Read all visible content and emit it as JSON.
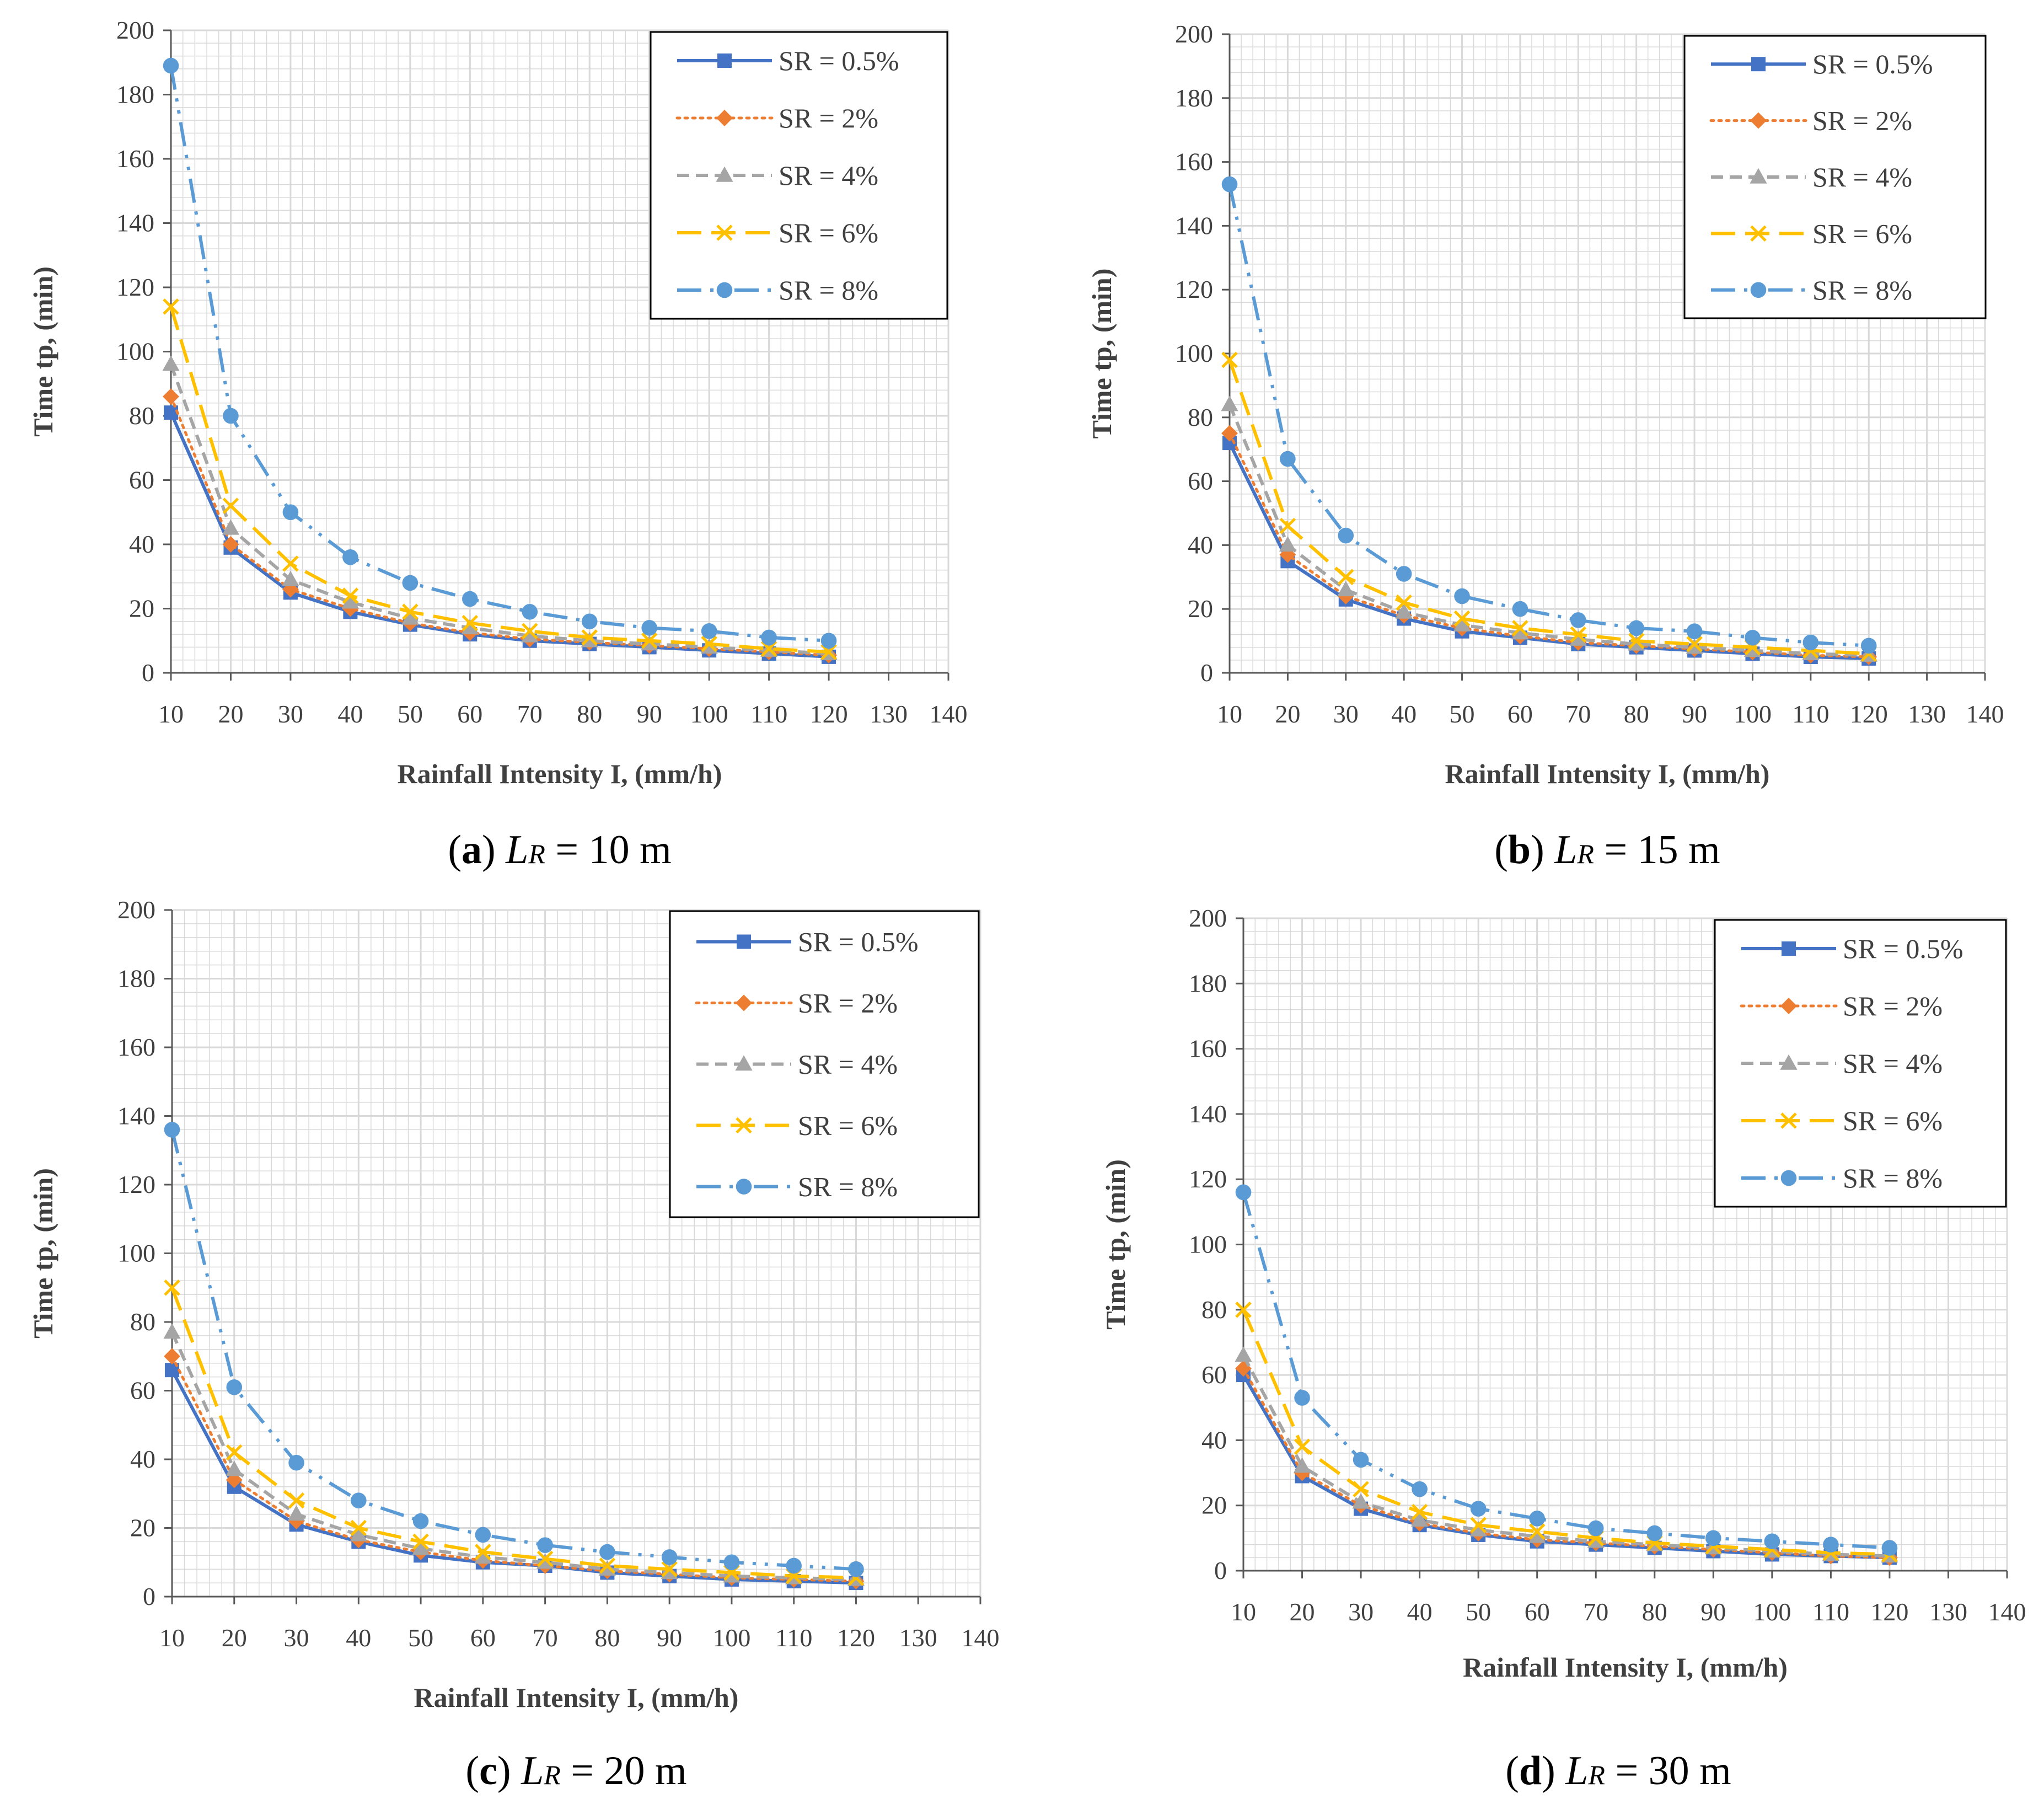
{
  "colors": {
    "sr_0_5": "#4472C4",
    "sr_2": "#ED7D31",
    "sr_4": "#A5A5A5",
    "sr_6": "#FFC000",
    "sr_8": "#5B9BD5",
    "grid": "#D9D9D9",
    "axis": "#595959"
  },
  "chart_data": [
    {
      "type": "line",
      "panel": "a",
      "caption": {
        "letter": "a",
        "L": "L",
        "sub": "R",
        "value": " = 10 m"
      },
      "xlabel": "Rainfall Intensity I, (mm/h)",
      "ylabel": "Time tp, (min)",
      "xlim": [
        10,
        140
      ],
      "ylim": [
        0,
        200
      ],
      "xticks": [
        10,
        20,
        30,
        40,
        50,
        60,
        70,
        80,
        90,
        100,
        110,
        120,
        130,
        140
      ],
      "yticks": [
        0,
        20,
        40,
        60,
        80,
        100,
        120,
        140,
        160,
        180,
        200
      ],
      "grid": true,
      "legend": "top-right",
      "x": [
        10,
        20,
        30,
        40,
        50,
        60,
        70,
        80,
        90,
        100,
        110,
        120
      ],
      "series": [
        {
          "name": "SR = 0.5%",
          "values": [
            81,
            39,
            25,
            19,
            15,
            12,
            10,
            9,
            8,
            7,
            6,
            5
          ]
        },
        {
          "name": "SR = 2%",
          "values": [
            86,
            40,
            26,
            20,
            15.5,
            12.5,
            10.5,
            9.5,
            8.5,
            7.5,
            6.5,
            5.5
          ]
        },
        {
          "name": "SR = 4%",
          "values": [
            96,
            45,
            29,
            22,
            17,
            14,
            11.5,
            10,
            9,
            8,
            7,
            6
          ]
        },
        {
          "name": "SR = 6%",
          "values": [
            114,
            52,
            34,
            24,
            19,
            15.5,
            13,
            11,
            10,
            9,
            7.5,
            6.5
          ]
        },
        {
          "name": "SR = 8%",
          "values": [
            189,
            80,
            50,
            36,
            28,
            23,
            19,
            16,
            14,
            13,
            11,
            10
          ]
        }
      ]
    },
    {
      "type": "line",
      "panel": "b",
      "caption": {
        "letter": "b",
        "L": "L",
        "sub": "R",
        "value": " = 15 m"
      },
      "xlabel": "Rainfall Intensity I, (mm/h)",
      "ylabel": "Time tp, (min)",
      "xlim": [
        10,
        140
      ],
      "ylim": [
        0,
        200
      ],
      "xticks": [
        10,
        20,
        30,
        40,
        50,
        60,
        70,
        80,
        90,
        100,
        110,
        120,
        130,
        140
      ],
      "yticks": [
        0,
        20,
        40,
        60,
        80,
        100,
        120,
        140,
        160,
        180,
        200
      ],
      "grid": true,
      "legend": "top-right",
      "x": [
        10,
        20,
        30,
        40,
        50,
        60,
        70,
        80,
        90,
        100,
        110,
        120
      ],
      "series": [
        {
          "name": "SR = 0.5%",
          "values": [
            72,
            35,
            23,
            17,
            13,
            11,
            9,
            8,
            7,
            6,
            5,
            4.5
          ]
        },
        {
          "name": "SR = 2%",
          "values": [
            75,
            37,
            24,
            18,
            14,
            11.5,
            9.5,
            8.5,
            7.5,
            6.5,
            5.5,
            5
          ]
        },
        {
          "name": "SR = 4%",
          "values": [
            84,
            40,
            26,
            19,
            15,
            12.5,
            10.5,
            9,
            8,
            7,
            6,
            5.5
          ]
        },
        {
          "name": "SR = 6%",
          "values": [
            98,
            46,
            30,
            22,
            17,
            14,
            12,
            10,
            9,
            8,
            7,
            6
          ]
        },
        {
          "name": "SR = 8%",
          "values": [
            153,
            67,
            43,
            31,
            24,
            20,
            16.5,
            14,
            13,
            11,
            9.5,
            8.5
          ]
        }
      ]
    },
    {
      "type": "line",
      "panel": "c",
      "caption": {
        "letter": "c",
        "L": "L",
        "sub": "R",
        "value": " = 20 m"
      },
      "xlabel": "Rainfall Intensity I, (mm/h)",
      "ylabel": "Time tp, (min)",
      "xlim": [
        10,
        140
      ],
      "ylim": [
        0,
        200
      ],
      "xticks": [
        10,
        20,
        30,
        40,
        50,
        60,
        70,
        80,
        90,
        100,
        110,
        120,
        130,
        140
      ],
      "yticks": [
        0,
        20,
        40,
        60,
        80,
        100,
        120,
        140,
        160,
        180,
        200
      ],
      "grid": true,
      "legend": "top-right",
      "x": [
        10,
        20,
        30,
        40,
        50,
        60,
        70,
        80,
        90,
        100,
        110,
        120
      ],
      "series": [
        {
          "name": "SR = 0.5%",
          "values": [
            66,
            32,
            21,
            16,
            12,
            10,
            9,
            7,
            6,
            5,
            4.5,
            4
          ]
        },
        {
          "name": "SR = 2%",
          "values": [
            70,
            34,
            22,
            16.5,
            13,
            10.5,
            9,
            7.5,
            6.5,
            5.5,
            5,
            4.5
          ]
        },
        {
          "name": "SR = 4%",
          "values": [
            77,
            37,
            24,
            18,
            14,
            11.5,
            10,
            8,
            7,
            6,
            5.5,
            5
          ]
        },
        {
          "name": "SR = 6%",
          "values": [
            90,
            42,
            28,
            20,
            16,
            13,
            11,
            9,
            8,
            7,
            6,
            5.5
          ]
        },
        {
          "name": "SR = 8%",
          "values": [
            136,
            61,
            39,
            28,
            22,
            18,
            15,
            13,
            11.5,
            10,
            9,
            8
          ]
        }
      ]
    },
    {
      "type": "line",
      "panel": "d",
      "caption": {
        "letter": "d",
        "L": "L",
        "sub": "R",
        "value": " = 30 m"
      },
      "xlabel": "Rainfall Intensity I, (mm/h)",
      "ylabel": "Time tp, (min)",
      "xlim": [
        10,
        140
      ],
      "ylim": [
        0,
        200
      ],
      "xticks": [
        10,
        20,
        30,
        40,
        50,
        60,
        70,
        80,
        90,
        100,
        110,
        120,
        130,
        140
      ],
      "yticks": [
        0,
        20,
        40,
        60,
        80,
        100,
        120,
        140,
        160,
        180,
        200
      ],
      "grid": true,
      "legend": "top-right",
      "x": [
        10,
        20,
        30,
        40,
        50,
        60,
        70,
        80,
        90,
        100,
        110,
        120
      ],
      "series": [
        {
          "name": "SR = 0.5%",
          "values": [
            60,
            29,
            19,
            14,
            11,
            9,
            8,
            7,
            6,
            5,
            4.5,
            4
          ]
        },
        {
          "name": "SR = 2%",
          "values": [
            62,
            30,
            20,
            14.5,
            11.5,
            9.5,
            8.5,
            7.5,
            6.5,
            5.5,
            4.5,
            4
          ]
        },
        {
          "name": "SR = 4%",
          "values": [
            66,
            32,
            21,
            15.5,
            12.5,
            10.5,
            9,
            8,
            7,
            6,
            5,
            4.5
          ]
        },
        {
          "name": "SR = 6%",
          "values": [
            80,
            38,
            25,
            18,
            14,
            12,
            10,
            8.5,
            7.5,
            6.5,
            5.5,
            5
          ]
        },
        {
          "name": "SR = 8%",
          "values": [
            116,
            53,
            34,
            25,
            19,
            16,
            13,
            11.5,
            10,
            9,
            8,
            7
          ]
        }
      ]
    }
  ]
}
